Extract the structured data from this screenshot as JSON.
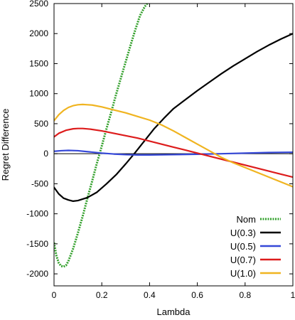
{
  "chart_data": {
    "type": "line",
    "title": "",
    "xlabel": "Lambda",
    "ylabel": "Regret Difference",
    "xlim": [
      0,
      1
    ],
    "ylim": [
      -2200,
      2500
    ],
    "xticks": [
      0,
      0.2,
      0.4,
      0.6,
      0.8,
      1
    ],
    "yticks": [
      -2000,
      -1500,
      -1000,
      -500,
      0,
      500,
      1000,
      1500,
      2000,
      2500
    ],
    "zero_line": true,
    "grid": false,
    "legend_position": "bottom-right",
    "series": [
      {
        "name": "Nom",
        "color": "#33a02c",
        "style": "dotted",
        "x": [
          0,
          0.01,
          0.02,
          0.03,
          0.04,
          0.05,
          0.06,
          0.08,
          0.1,
          0.12,
          0.14,
          0.16,
          0.18,
          0.2,
          0.22,
          0.24,
          0.26,
          0.28,
          0.3,
          0.32,
          0.34,
          0.36,
          0.38,
          0.39
        ],
        "y": [
          -1480,
          -1700,
          -1820,
          -1870,
          -1880,
          -1860,
          -1790,
          -1580,
          -1320,
          -1040,
          -740,
          -450,
          -150,
          130,
          420,
          700,
          990,
          1260,
          1530,
          1800,
          2060,
          2300,
          2450,
          2500
        ]
      },
      {
        "name": "U(0.3)",
        "color": "#000000",
        "style": "solid",
        "x": [
          0,
          0.02,
          0.04,
          0.06,
          0.08,
          0.1,
          0.14,
          0.18,
          0.22,
          0.26,
          0.3,
          0.34,
          0.38,
          0.42,
          0.46,
          0.5,
          0.55,
          0.6,
          0.65,
          0.7,
          0.75,
          0.8,
          0.85,
          0.9,
          0.95,
          1
        ],
        "y": [
          -560,
          -670,
          -740,
          -770,
          -790,
          -780,
          -730,
          -640,
          -500,
          -350,
          -170,
          20,
          220,
          420,
          590,
          750,
          900,
          1050,
          1190,
          1330,
          1460,
          1580,
          1700,
          1810,
          1910,
          2000
        ]
      },
      {
        "name": "U(0.5)",
        "color": "#3548d8",
        "style": "solid",
        "x": [
          0,
          0.03,
          0.06,
          0.1,
          0.15,
          0.2,
          0.25,
          0.3,
          0.35,
          0.4,
          0.5,
          0.6,
          0.7,
          0.8,
          0.9,
          1
        ],
        "y": [
          40,
          50,
          55,
          50,
          30,
          10,
          -5,
          -15,
          -20,
          -20,
          -15,
          -8,
          0,
          10,
          20,
          25
        ]
      },
      {
        "name": "U(0.7)",
        "color": "#dd1c1c",
        "style": "solid",
        "x": [
          0,
          0.02,
          0.05,
          0.08,
          0.1,
          0.12,
          0.15,
          0.2,
          0.25,
          0.3,
          0.35,
          0.4,
          0.45,
          0.5,
          0.55,
          0.6,
          0.65,
          0.7,
          0.75,
          0.8,
          0.85,
          0.9,
          0.95,
          1
        ],
        "y": [
          280,
          340,
          390,
          415,
          420,
          420,
          410,
          380,
          340,
          300,
          260,
          210,
          160,
          110,
          60,
          10,
          -40,
          -90,
          -140,
          -190,
          -240,
          -290,
          -340,
          -390
        ]
      },
      {
        "name": "U(1.0)",
        "color": "#f0b420",
        "style": "solid",
        "x": [
          0,
          0.02,
          0.04,
          0.06,
          0.08,
          0.1,
          0.12,
          0.14,
          0.16,
          0.2,
          0.25,
          0.3,
          0.35,
          0.4,
          0.45,
          0.5,
          0.55,
          0.6,
          0.65,
          0.7,
          0.75,
          0.8,
          0.85,
          0.9,
          0.95,
          1
        ],
        "y": [
          550,
          650,
          720,
          770,
          800,
          815,
          820,
          815,
          810,
          780,
          730,
          680,
          620,
          560,
          480,
          380,
          270,
          160,
          50,
          -60,
          -150,
          -230,
          -310,
          -390,
          -470,
          -550
        ]
      }
    ]
  }
}
